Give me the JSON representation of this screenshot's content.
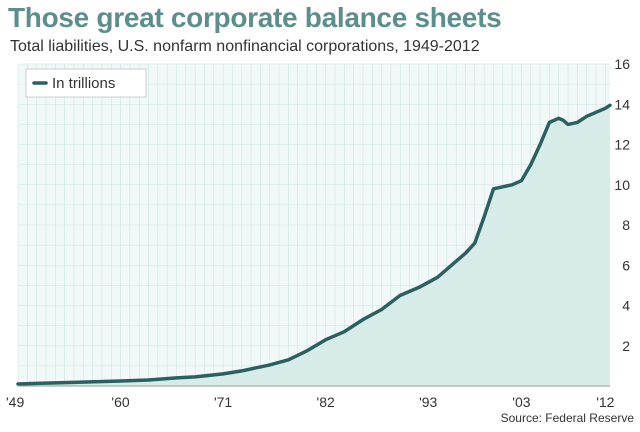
{
  "chart_data": {
    "type": "area",
    "title": "Those great corporate balance sheets",
    "subtitle": "Total liabilities, U.S. nonfarm nonfinancial corporations, 1949-2012",
    "legend": "In trillions",
    "legend_position": "top-left",
    "source": "Source: Federal Reserve",
    "xlabel": "",
    "ylabel": "",
    "xlim": [
      1949,
      2012.5
    ],
    "ylim": [
      0,
      16
    ],
    "grid": true,
    "x_ticks": [
      1949,
      1960,
      1971,
      1982,
      1993,
      2003,
      2012
    ],
    "x_tick_labels": [
      "'49",
      "'60",
      "'71",
      "'82",
      "'93",
      "'03",
      "'12"
    ],
    "y_ticks": [
      2,
      4,
      6,
      8,
      10,
      12,
      14,
      16
    ],
    "y_tick_labels": [
      "2",
      "4",
      "6",
      "8",
      "10",
      "12",
      "14",
      "16"
    ],
    "series": [
      {
        "name": "In trillions",
        "x": [
          1949,
          1951,
          1955,
          1960,
          1963,
          1966,
          1968,
          1970,
          1971,
          1973,
          1975,
          1976,
          1978,
          1980,
          1982,
          1984,
          1986,
          1988,
          1990,
          1992,
          1994,
          1996,
          1997,
          1998,
          1999,
          2000,
          2001,
          2002,
          2003,
          2004,
          2005,
          2006,
          2007,
          2007.5,
          2008,
          2009,
          2010,
          2011,
          2012,
          2012.5
        ],
        "values": [
          0.1,
          0.13,
          0.18,
          0.25,
          0.3,
          0.4,
          0.45,
          0.55,
          0.6,
          0.75,
          0.95,
          1.05,
          1.3,
          1.75,
          2.3,
          2.7,
          3.3,
          3.8,
          4.5,
          4.9,
          5.4,
          6.2,
          6.6,
          7.1,
          8.4,
          9.8,
          9.9,
          10.0,
          10.2,
          11.0,
          12.0,
          13.1,
          13.3,
          13.2,
          13.0,
          13.1,
          13.4,
          13.6,
          13.8,
          13.95
        ]
      }
    ]
  },
  "colors": {
    "title": "#5b8e8c",
    "line": "#2b6060",
    "fill": "#d7ece9",
    "plot_bg": "#f1f9f8",
    "grid": "#cce4df"
  }
}
